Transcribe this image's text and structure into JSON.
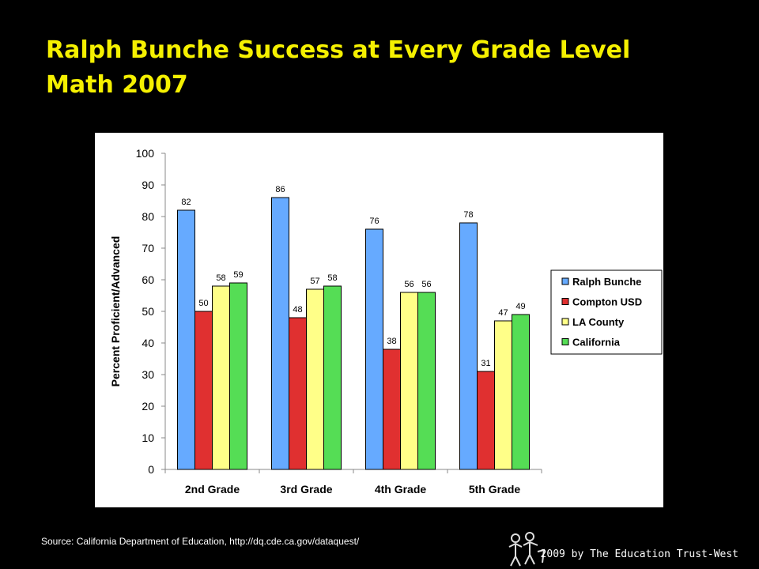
{
  "slide": {
    "title_line1": "Ralph Bunche Success at Every Grade Level",
    "title_line2": "Math 2007",
    "source": "Source: California Department of Education, http://dq.cde.ca.gov/dataquest/",
    "footer": "2009 by The Education Trust-West",
    "logo_icon": "education-trust-west-logo-icon"
  },
  "colors": {
    "title": "#f5f000",
    "background": "#000000"
  },
  "chart_data": {
    "type": "bar",
    "title": "",
    "xlabel": "",
    "ylabel": "Percent Proficient/Advanced",
    "ylim": [
      0,
      100
    ],
    "yticks": [
      0,
      10,
      20,
      30,
      40,
      50,
      60,
      70,
      80,
      90,
      100
    ],
    "grid": false,
    "legend_position": "right",
    "categories": [
      "2nd Grade",
      "3rd Grade",
      "4th Grade",
      "5th Grade"
    ],
    "series": [
      {
        "name": "Ralph Bunche",
        "color": "#66aaff",
        "values": [
          82,
          86,
          76,
          78
        ]
      },
      {
        "name": "Compton USD",
        "color": "#e03030",
        "values": [
          50,
          48,
          38,
          31
        ]
      },
      {
        "name": "LA County",
        "color": "#ffff88",
        "values": [
          58,
          57,
          56,
          47
        ]
      },
      {
        "name": "California",
        "color": "#55dd55",
        "values": [
          59,
          58,
          56,
          49
        ]
      }
    ]
  }
}
